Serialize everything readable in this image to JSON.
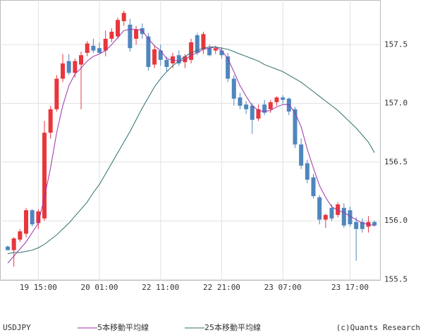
{
  "chart_data": {
    "type": "candlestick",
    "symbol": "USDJPY",
    "copyright": "(c)Quants Research",
    "categories": [
      null,
      null,
      null,
      null,
      null,
      "19 15:00",
      null,
      null,
      null,
      null,
      null,
      null,
      null,
      null,
      null,
      "20 01:00",
      null,
      null,
      null,
      null,
      null,
      null,
      null,
      null,
      null,
      "22 11:00",
      null,
      null,
      null,
      null,
      null,
      null,
      null,
      null,
      null,
      "22 21:00",
      null,
      null,
      null,
      null,
      null,
      null,
      null,
      null,
      null,
      "23 07:00",
      null,
      null,
      null,
      null,
      null,
      null,
      null,
      null,
      null,
      null,
      "23 17:00",
      null,
      null,
      null,
      null
    ],
    "open": [
      155.78,
      155.75,
      155.84,
      155.89,
      156.09,
      155.98,
      156.02,
      156.75,
      156.95,
      157.21,
      157.36,
      157.26,
      157.33,
      157.43,
      157.49,
      157.47,
      157.45,
      157.55,
      157.57,
      157.7,
      157.67,
      157.55,
      157.64,
      157.57,
      157.33,
      157.45,
      157.37,
      157.34,
      157.41,
      157.35,
      157.37,
      157.58,
      157.46,
      157.47,
      157.45,
      157.45,
      157.4,
      157.21,
      157.05,
      156.99,
      156.98,
      156.87,
      156.99,
      156.95,
      157.01,
      157.05,
      157.04,
      156.95,
      156.65,
      156.49,
      156.37,
      156.2,
      156.01,
      156.11,
      156.05,
      156.11,
      156.09,
      155.99,
      155.99,
      155.95,
      155.99
    ],
    "high": [
      155.79,
      155.86,
      155.93,
      156.11,
      156.1,
      156.1,
      156.85,
      156.98,
      157.24,
      157.42,
      157.42,
      157.38,
      157.44,
      157.53,
      157.55,
      157.52,
      157.62,
      157.64,
      157.73,
      157.79,
      157.72,
      157.66,
      157.68,
      157.6,
      157.49,
      157.5,
      157.4,
      157.43,
      157.45,
      157.42,
      157.55,
      157.6,
      157.61,
      157.5,
      157.49,
      157.48,
      157.43,
      157.24,
      157.09,
      157.02,
      157.0,
      156.99,
      157.03,
      157.03,
      157.06,
      157.07,
      157.05,
      156.97,
      156.7,
      156.52,
      156.4,
      156.22,
      156.06,
      156.14,
      156.16,
      156.15,
      156.12,
      156.03,
      156.02,
      156.04,
      156.0
    ],
    "low": [
      155.75,
      155.61,
      155.82,
      155.86,
      155.95,
      155.93,
      156.0,
      156.7,
      156.93,
      157.18,
      157.24,
      157.22,
      156.95,
      157.4,
      157.43,
      157.42,
      157.4,
      157.52,
      157.55,
      157.66,
      157.44,
      157.5,
      157.55,
      157.28,
      157.3,
      157.32,
      157.27,
      157.3,
      157.32,
      157.3,
      157.34,
      157.41,
      157.42,
      157.4,
      157.42,
      157.38,
      157.18,
      156.98,
      156.95,
      156.91,
      156.74,
      156.85,
      156.9,
      156.92,
      156.98,
      157.0,
      156.9,
      156.62,
      156.44,
      156.32,
      156.19,
      155.97,
      155.94,
      156.0,
      156.03,
      155.94,
      155.95,
      155.66,
      155.9,
      155.9,
      155.95
    ],
    "close": [
      155.75,
      155.85,
      155.91,
      156.09,
      155.97,
      156.08,
      156.75,
      156.95,
      157.21,
      157.34,
      157.26,
      157.36,
      157.41,
      157.51,
      157.45,
      157.43,
      157.55,
      157.61,
      157.71,
      157.77,
      157.47,
      157.63,
      157.59,
      157.31,
      157.46,
      157.37,
      157.31,
      157.4,
      157.34,
      157.4,
      157.52,
      157.43,
      157.59,
      157.41,
      157.47,
      157.41,
      157.21,
      157.04,
      156.98,
      156.95,
      156.86,
      156.95,
      156.92,
      157.01,
      157.05,
      157.03,
      156.93,
      156.65,
      156.47,
      156.35,
      156.21,
      156.01,
      156.05,
      156.02,
      156.14,
      155.96,
      155.97,
      155.93,
      155.93,
      155.99,
      155.96
    ],
    "up_color": "#e8363c",
    "down_color": "#4f86be",
    "series": [
      {
        "name": "5本移動平均線",
        "color": "#9b30a8",
        "values": [
          155.64,
          155.7,
          155.76,
          155.82,
          155.9,
          155.98,
          156.2,
          156.45,
          156.75,
          156.98,
          157.15,
          157.25,
          157.3,
          157.36,
          157.4,
          157.42,
          157.45,
          157.5,
          157.56,
          157.62,
          157.63,
          157.63,
          157.62,
          157.55,
          157.49,
          157.45,
          157.38,
          157.37,
          157.36,
          157.37,
          157.41,
          157.43,
          157.46,
          157.47,
          157.48,
          157.45,
          157.38,
          157.27,
          157.15,
          157.06,
          156.98,
          156.94,
          156.93,
          156.94,
          156.97,
          156.99,
          156.99,
          156.92,
          156.8,
          156.61,
          156.45,
          156.3,
          156.2,
          156.12,
          156.09,
          156.07,
          156.04,
          156.01,
          155.98,
          155.97,
          155.96
        ]
      },
      {
        "name": "25本移動平均線",
        "color": "#2f6e6e",
        "values": [
          155.72,
          155.73,
          155.73,
          155.74,
          155.75,
          155.77,
          155.8,
          155.84,
          155.88,
          155.93,
          155.98,
          156.04,
          156.1,
          156.16,
          156.24,
          156.31,
          156.4,
          156.49,
          156.58,
          156.67,
          156.76,
          156.86,
          156.96,
          157.05,
          157.14,
          157.21,
          157.27,
          157.32,
          157.36,
          157.4,
          157.43,
          157.45,
          157.47,
          157.48,
          157.48,
          157.47,
          157.46,
          157.44,
          157.42,
          157.4,
          157.38,
          157.36,
          157.33,
          157.31,
          157.29,
          157.27,
          157.24,
          157.21,
          157.18,
          157.14,
          157.1,
          157.06,
          157.02,
          156.98,
          156.94,
          156.89,
          156.84,
          156.79,
          156.73,
          156.67,
          156.58
        ]
      }
    ],
    "ylim": [
      155.49,
      157.88
    ],
    "yticks": [
      155.5,
      {
        "value": 156,
        "label": "156.0"
      },
      156.5,
      {
        "value": 157,
        "label": "157.0"
      },
      157.5
    ],
    "grid": true
  }
}
